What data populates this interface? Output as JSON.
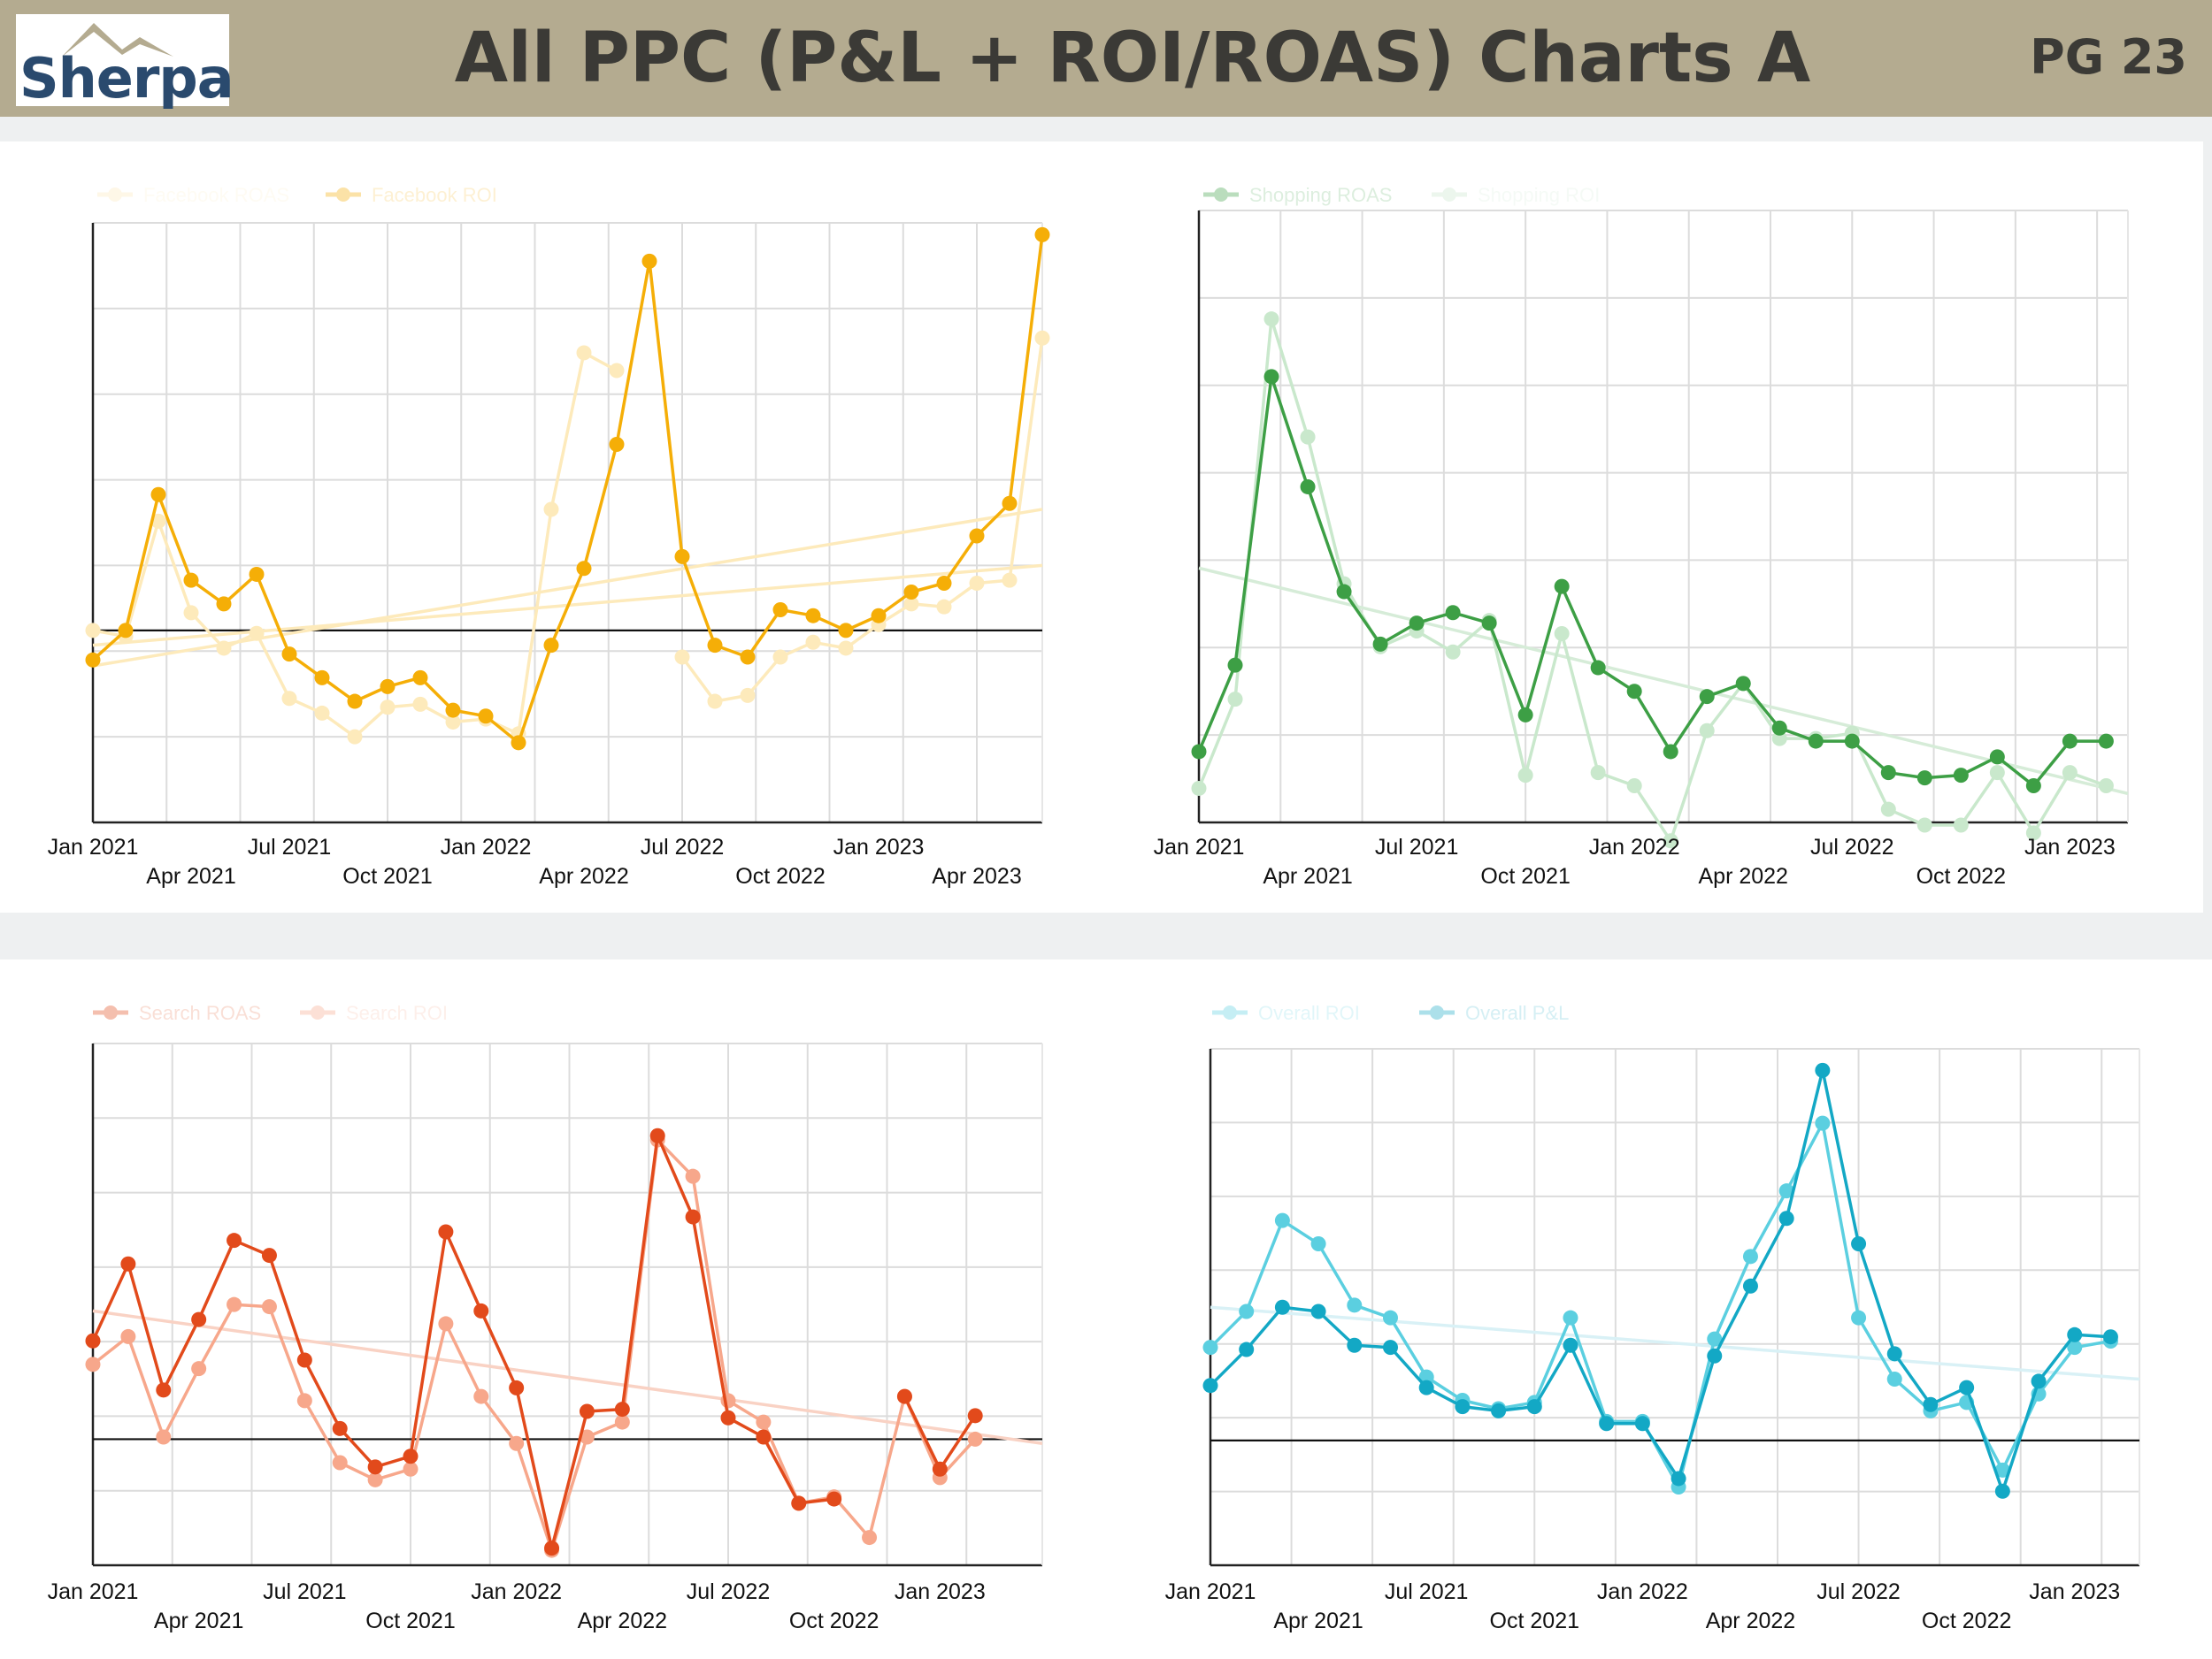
{
  "header": {
    "logo_text": "Sherpa",
    "title": "All PPC (P&L + ROI/ROAS) Charts A",
    "page_label": "PG 23",
    "background_color": "#b4ab90"
  },
  "chart_data": [
    {
      "id": "facebook",
      "type": "line",
      "legend": [
        "Facebook ROAS",
        "Facebook ROI"
      ],
      "x": [
        "Jan 2021",
        "Feb 2021",
        "Mar 2021",
        "Apr 2021",
        "May 2021",
        "Jun 2021",
        "Jul 2021",
        "Aug 2021",
        "Sep 2021",
        "Oct 2021",
        "Nov 2021",
        "Dec 2021",
        "Jan 2022",
        "Feb 2022",
        "Mar 2022",
        "Apr 2022",
        "May 2022",
        "Jun 2022",
        "Jul 2022",
        "Aug 2022",
        "Sep 2022",
        "Oct 2022",
        "Nov 2022",
        "Dec 2022",
        "Jan 2023",
        "Feb 2023",
        "Mar 2023",
        "Apr 2023",
        "May 2023",
        "Jun 2023"
      ],
      "x_tick_labels": [
        "Jan 2021",
        "Apr 2021",
        "Jul 2021",
        "Oct 2021",
        "Jan 2022",
        "Apr 2022",
        "Jul 2022",
        "Oct 2022",
        "Jan 2023",
        "Apr 2023"
      ],
      "ylim": [
        0,
        10
      ],
      "zero_line": 3.25,
      "series": [
        {
          "name": "Facebook ROI",
          "color": "#f5ae07",
          "values": [
            2.75,
            3.25,
            5.55,
            4.1,
            3.7,
            4.2,
            2.85,
            2.45,
            2.05,
            2.3,
            2.45,
            1.9,
            1.8,
            1.35,
            3.0,
            4.3,
            6.4,
            9.5,
            4.5,
            3.0,
            2.8,
            3.6,
            3.5,
            3.25,
            3.5,
            3.9,
            4.05,
            4.85,
            5.4,
            9.95
          ]
        },
        {
          "name": "Facebook ROAS",
          "color": "#fdeabb",
          "values": [
            3.25,
            3.15,
            5.1,
            3.55,
            2.95,
            3.2,
            2.1,
            1.85,
            1.45,
            1.95,
            2.0,
            1.7,
            1.75,
            1.5,
            5.3,
            7.95,
            7.65,
            null,
            2.8,
            2.05,
            2.15,
            2.8,
            3.05,
            2.95,
            3.35,
            3.7,
            3.65,
            4.05,
            4.1,
            8.2
          ]
        }
      ],
      "trendlines": [
        {
          "color": "#fdeabb",
          "from": 2.65,
          "to": 5.3
        },
        {
          "color": "#fdeabb",
          "from": 3.0,
          "to": 4.35
        }
      ]
    },
    {
      "id": "shopping",
      "type": "line",
      "legend": [
        "Shopping ROAS",
        "Shopping ROI"
      ],
      "x": [
        "Jan 2021",
        "Feb 2021",
        "Mar 2021",
        "Apr 2021",
        "May 2021",
        "Jun 2021",
        "Jul 2021",
        "Aug 2021",
        "Sep 2021",
        "Oct 2021",
        "Nov 2021",
        "Dec 2021",
        "Jan 2022",
        "Feb 2022",
        "Mar 2022",
        "Apr 2022",
        "May 2022",
        "Jun 2022",
        "Jul 2022",
        "Aug 2022",
        "Sep 2022",
        "Oct 2022",
        "Nov 2022",
        "Dec 2022",
        "Jan 2023",
        "Feb 2023"
      ],
      "x_tick_labels": [
        "Jan 2021",
        "Apr 2021",
        "Jul 2021",
        "Oct 2021",
        "Jan 2022",
        "Apr 2022",
        "Jul 2022",
        "Oct 2022",
        "Jan 2023"
      ],
      "ylim": [
        -1.0,
        10.5
      ],
      "series": [
        {
          "name": "Shopping ROAS",
          "color": "#3d9f45",
          "values": [
            0.35,
            2.0,
            7.5,
            5.4,
            3.4,
            2.4,
            2.8,
            3.0,
            2.8,
            1.05,
            3.5,
            1.95,
            1.5,
            0.35,
            1.4,
            1.65,
            0.8,
            0.55,
            0.55,
            -0.05,
            -0.15,
            -0.1,
            0.25,
            -0.3,
            0.55,
            0.55
          ]
        },
        {
          "name": "Shopping ROI",
          "color": "#c9e8cc",
          "values": [
            -0.35,
            1.35,
            8.6,
            6.35,
            3.55,
            2.35,
            2.65,
            2.25,
            2.85,
            -0.1,
            2.6,
            -0.05,
            -0.3,
            -1.35,
            0.75,
            1.65,
            0.6,
            0.6,
            0.7,
            -0.75,
            -1.05,
            -1.05,
            -0.05,
            -1.2,
            -0.05,
            -0.3
          ]
        }
      ],
      "trendlines": [
        {
          "color": "#d6ecd8",
          "from": 3.85,
          "to": -0.45
        }
      ]
    },
    {
      "id": "search",
      "type": "line",
      "legend": [
        "Search ROAS",
        "Search ROI"
      ],
      "x": [
        "Jan 2021",
        "Feb 2021",
        "Mar 2021",
        "Apr 2021",
        "May 2021",
        "Jun 2021",
        "Jul 2021",
        "Aug 2021",
        "Sep 2021",
        "Oct 2021",
        "Nov 2021",
        "Dec 2021",
        "Jan 2022",
        "Feb 2022",
        "Mar 2022",
        "Apr 2022",
        "May 2022",
        "Jun 2022",
        "Jul 2022",
        "Aug 2022",
        "Sep 2022",
        "Oct 2022",
        "Nov 2022",
        "Dec 2022",
        "Jan 2023",
        "Feb 2023"
      ],
      "x_tick_labels": [
        "Jan 2021",
        "Apr 2021",
        "Jul 2021",
        "Oct 2021",
        "Jan 2022",
        "Apr 2022",
        "Jul 2022",
        "Oct 2022",
        "Jan 2023"
      ],
      "ylim": [
        0,
        12
      ],
      "zero_line": 2.95,
      "series": [
        {
          "name": "Search ROAS",
          "color": "#e24a1b",
          "values": [
            5.25,
            7.05,
            4.1,
            5.75,
            7.6,
            7.25,
            4.8,
            3.2,
            2.3,
            2.55,
            7.8,
            5.95,
            4.15,
            0.4,
            3.6,
            3.65,
            10.05,
            8.15,
            3.45,
            3.0,
            1.45,
            1.55,
            null,
            3.95,
            2.25,
            3.5
          ]
        },
        {
          "name": "Search ROI",
          "color": "#f7a78b",
          "values": [
            4.7,
            5.35,
            3.0,
            4.6,
            6.1,
            6.05,
            3.85,
            2.4,
            2.0,
            2.25,
            5.65,
            3.95,
            2.85,
            0.35,
            3.0,
            3.35,
            9.95,
            9.1,
            3.85,
            3.35,
            1.45,
            1.6,
            0.65,
            3.95,
            2.05,
            2.95
          ]
        }
      ],
      "trendlines": [
        {
          "color": "#f9d2c4",
          "from": 5.95,
          "to": 2.85
        }
      ]
    },
    {
      "id": "overall",
      "type": "line",
      "legend": [
        "Overall ROI",
        "Overall P&L"
      ],
      "x": [
        "Jan 2021",
        "Feb 2021",
        "Mar 2021",
        "Apr 2021",
        "May 2021",
        "Jun 2021",
        "Jul 2021",
        "Aug 2021",
        "Sep 2021",
        "Oct 2021",
        "Nov 2021",
        "Dec 2021",
        "Jan 2022",
        "Feb 2022",
        "Mar 2022",
        "Apr 2022",
        "May 2022",
        "Jun 2022",
        "Jul 2022",
        "Aug 2022",
        "Sep 2022",
        "Oct 2022",
        "Nov 2022",
        "Dec 2022",
        "Jan 2023",
        "Feb 2023"
      ],
      "x_tick_labels": [
        "Jan 2021",
        "Apr 2021",
        "Jul 2021",
        "Oct 2021",
        "Jan 2022",
        "Apr 2022",
        "Jul 2022",
        "Oct 2022",
        "Jan 2023"
      ],
      "ylim": [
        0,
        12
      ],
      "zero_line": 2.95,
      "series": [
        {
          "name": "Overall P&L",
          "color": "#13a8c5",
          "values": [
            4.25,
            5.1,
            6.1,
            6.0,
            5.2,
            5.15,
            4.2,
            3.75,
            3.65,
            3.75,
            5.2,
            3.35,
            3.35,
            2.05,
            4.95,
            6.6,
            8.2,
            11.7,
            7.6,
            5.0,
            3.8,
            4.2,
            1.75,
            4.35,
            5.45,
            5.4
          ]
        },
        {
          "name": "Overall ROI",
          "color": "#5bcfe0",
          "values": [
            5.15,
            6.0,
            8.15,
            7.6,
            6.15,
            5.85,
            4.45,
            3.9,
            3.7,
            3.85,
            5.85,
            3.4,
            3.4,
            1.85,
            5.35,
            7.3,
            8.85,
            10.45,
            5.85,
            4.4,
            3.65,
            3.85,
            2.25,
            4.05,
            5.15,
            5.3
          ]
        }
      ],
      "trendlines": [
        {
          "color": "#d9f1f6",
          "from": 6.1,
          "to": 4.4
        }
      ]
    }
  ]
}
